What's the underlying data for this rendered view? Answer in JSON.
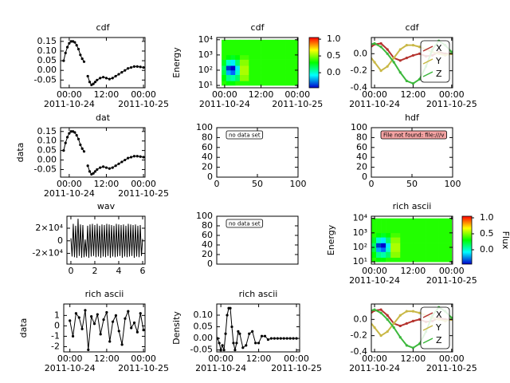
{
  "chart_data": [
    {
      "type": "line",
      "title": "cdf",
      "markers": true,
      "x": [
        -1.8,
        -1.2,
        -0.6,
        0,
        0.6,
        1.2,
        1.8,
        2.4,
        3,
        3.6,
        4.2,
        4.8,
        5.4,
        6,
        6.6,
        7.2,
        7.8,
        8.4,
        9,
        10,
        11,
        12,
        13,
        14,
        15,
        16,
        17,
        18,
        19,
        20,
        21,
        22,
        23,
        24
      ],
      "series": [
        {
          "color": "#000000",
          "values": [
            0.05,
            0.09,
            0.12,
            0.14,
            0.15,
            0.15,
            0.145,
            0.13,
            0.11,
            0.08,
            0.06,
            0.045,
            null,
            -0.03,
            -0.06,
            -0.075,
            -0.07,
            -0.06,
            -0.05,
            -0.04,
            -0.035,
            -0.04,
            -0.045,
            -0.04,
            -0.03,
            -0.02,
            -0.01,
            0,
            0.01,
            0.015,
            0.02,
            0.02,
            0.018,
            0.015
          ]
        }
      ],
      "xlim": [
        -2.8,
        24.5
      ],
      "ylim": [
        -0.09,
        0.17
      ],
      "xticks": [
        {
          "value": 0,
          "label": "00:00\n2011-10-24"
        },
        {
          "value": 12,
          "label": "12:00"
        },
        {
          "value": 24,
          "label": "00:00\n2011-10-25"
        }
      ],
      "yticks": [
        0.15,
        {
          "value": 0.1,
          "label": "0.10"
        },
        0.05,
        {
          "value": 0,
          "label": "0.00"
        },
        -0.05
      ]
    },
    {
      "type": "heatmap",
      "title": "cdf",
      "ylabel": "Energy",
      "ylog": true,
      "xbins": [
        -1,
        0.5,
        2,
        3.5,
        5,
        8,
        12,
        16,
        20,
        24
      ],
      "ybins": [
        10,
        20,
        50,
        100,
        200,
        500,
        1000,
        10000
      ],
      "z": [
        [
          0.35,
          0.3,
          0.3,
          0.35,
          0.35,
          0.35,
          0.35,
          0.35,
          0.35
        ],
        [
          0.3,
          0.1,
          0.05,
          0.15,
          0.5,
          0.35,
          0.35,
          0.35,
          0.35
        ],
        [
          0.2,
          -0.2,
          -0.3,
          0,
          0.55,
          0.35,
          0.35,
          0.35,
          0.35
        ],
        [
          0.15,
          -0.35,
          -0.45,
          -0.1,
          0.55,
          0.35,
          0.35,
          0.35,
          0.35
        ],
        [
          0.25,
          0,
          -0.1,
          0.15,
          0.5,
          0.35,
          0.35,
          0.35,
          0.35
        ],
        [
          0.35,
          0.3,
          0.25,
          0.3,
          0.4,
          0.35,
          0.35,
          0.35,
          0.35
        ],
        [
          0.35,
          0.35,
          0.35,
          0.35,
          0.35,
          0.35,
          0.35,
          0.35,
          0.35
        ]
      ],
      "clim": [
        -0.45,
        1.05
      ],
      "cticks": [
        {
          "value": 1,
          "label": "1.0"
        },
        {
          "value": 0.5,
          "label": "0.5"
        },
        {
          "value": 0,
          "label": "0.0"
        }
      ],
      "xlim": [
        -2.6,
        24.2
      ],
      "ylim": [
        7,
        14000
      ],
      "xticks": [
        {
          "value": 0,
          "label": "00:00\n2011-10-24"
        },
        {
          "value": 12,
          "label": "12:00"
        },
        {
          "value": 24,
          "label": "00:00\n2011-10-25"
        }
      ],
      "yticks": [
        {
          "value": 10,
          "label": "10¹"
        },
        {
          "value": 100,
          "label": "10²"
        },
        {
          "value": 1000,
          "label": "10³"
        },
        {
          "value": 10000,
          "label": "10⁴"
        }
      ]
    },
    {
      "type": "line",
      "title": "cdf",
      "markers": true,
      "legend": "right",
      "x": [
        -2,
        0,
        2,
        4,
        6,
        8,
        10,
        12,
        14,
        16,
        18,
        20,
        22,
        24
      ],
      "series": [
        {
          "name": "X",
          "color": "#b5332e",
          "values": [
            0.05,
            0.11,
            0.12,
            0.05,
            -0.05,
            -0.08,
            -0.05,
            -0.02,
            0,
            -0.03,
            -0.02,
            0.02,
            0,
            0
          ]
        },
        {
          "name": "Y",
          "color": "#c9b846",
          "values": [
            0,
            -0.1,
            -0.2,
            -0.15,
            -0.05,
            0.05,
            0.1,
            0.1,
            0.08,
            0.05,
            0.02,
            0,
            -0.02,
            0
          ]
        },
        {
          "name": "Z",
          "color": "#3cb83c",
          "values": [
            0.1,
            0.12,
            0.08,
            0,
            -0.1,
            -0.22,
            -0.32,
            -0.35,
            -0.3,
            -0.15,
            0.05,
            0.15,
            0.1,
            0.02
          ]
        }
      ],
      "xlim": [
        -1,
        24.3
      ],
      "ylim": [
        -0.4,
        0.19
      ],
      "xticks": [
        {
          "value": 0,
          "label": "00:00\n2011-10-24"
        },
        {
          "value": 12,
          "label": "12:00"
        },
        {
          "value": 24,
          "label": "00:00\n2011-10-25"
        }
      ],
      "yticks": [
        {
          "value": 0,
          "label": "0.0"
        },
        -0.2,
        -0.4
      ]
    },
    {
      "type": "line",
      "title": "dat",
      "ylabel": "data",
      "markers": true,
      "x": [
        -1.8,
        -1.2,
        -0.6,
        0,
        0.6,
        1.2,
        1.8,
        2.4,
        3,
        3.6,
        4.2,
        4.8,
        5.4,
        6,
        6.6,
        7.2,
        7.8,
        8.4,
        9,
        10,
        11,
        12,
        13,
        14,
        15,
        16,
        17,
        18,
        19,
        20,
        21,
        22,
        23,
        24
      ],
      "series": [
        {
          "color": "#000000",
          "values": [
            0.05,
            0.09,
            0.12,
            0.14,
            0.15,
            0.15,
            0.145,
            0.13,
            0.11,
            0.08,
            0.06,
            0.045,
            null,
            -0.03,
            -0.06,
            -0.075,
            -0.07,
            -0.06,
            -0.05,
            -0.04,
            -0.035,
            -0.04,
            -0.045,
            -0.04,
            -0.03,
            -0.02,
            -0.01,
            0,
            0.01,
            0.015,
            0.02,
            0.02,
            0.018,
            0.015
          ]
        }
      ],
      "xlim": [
        -2.8,
        24.5
      ],
      "ylim": [
        -0.09,
        0.17
      ],
      "xticks": [
        {
          "value": 0,
          "label": "00:00\n2011-10-24"
        },
        {
          "value": 12,
          "label": "12:00"
        },
        {
          "value": 24,
          "label": "00:00\n2011-10-25"
        }
      ],
      "yticks": [
        0.15,
        {
          "value": 0.1,
          "label": "0.10"
        },
        0.05,
        {
          "value": 0,
          "label": "0.00"
        },
        -0.05
      ]
    },
    {
      "type": "line",
      "series": [],
      "annotation": "no data set",
      "annotation_color": "#ffffff",
      "xlim": [
        0,
        100
      ],
      "ylim": [
        0,
        100
      ],
      "xticks": [
        0,
        50,
        100
      ],
      "yticks": [
        0,
        20,
        40,
        60,
        80,
        100
      ]
    },
    {
      "type": "line",
      "title": "hdf",
      "series": [],
      "annotation": "File not found: file:///v",
      "annotation_color": "#f4a3a3",
      "xlim": [
        0,
        100
      ],
      "ylim": [
        0,
        100
      ],
      "xticks": [
        0,
        50,
        100
      ],
      "yticks": [
        0,
        20,
        40,
        60,
        80,
        100
      ]
    },
    {
      "type": "line",
      "title": "wav",
      "markers": false,
      "x": [
        0,
        0.1,
        0.2,
        0.3,
        0.4,
        0.5,
        0.6,
        0.7,
        0.8,
        0.9,
        1,
        1.1,
        1.2,
        1.3,
        1.4,
        1.5,
        1.6,
        1.7,
        1.8,
        1.9,
        2,
        2.1,
        2.2,
        2.3,
        2.4,
        2.5,
        2.6,
        2.7,
        2.8,
        2.9,
        3,
        3.1,
        3.2,
        3.3,
        3.4,
        3.5,
        3.6,
        3.7,
        3.8,
        3.9,
        4,
        4.1,
        4.2,
        4.3,
        4.4,
        4.5,
        4.6,
        4.7,
        4.8,
        4.9,
        5,
        5.1,
        5.2,
        5.3,
        5.4,
        5.5,
        5.6,
        5.7,
        5.8,
        5.9,
        6
      ],
      "series": [
        {
          "color": "#000000",
          "values": [
            4000,
            -25000,
            27000,
            -26000,
            24000,
            -27000,
            35000,
            -24000,
            26000,
            -27000,
            25000,
            -26000,
            2000,
            -25000,
            24000,
            -27000,
            26000,
            -25000,
            27000,
            -24000,
            25000,
            -26000,
            27000,
            -25000,
            24000,
            -27000,
            26000,
            -25000,
            25000,
            -26000,
            27000,
            -24000,
            26000,
            -27000,
            25000,
            -25000,
            24000,
            -26000,
            27000,
            -25000,
            26000,
            -24000,
            25000,
            -27000,
            26000,
            -25000,
            24000,
            -26000,
            27000,
            -25000,
            26000,
            -24000,
            25000,
            -27000,
            26000,
            -25000,
            24000,
            -26000,
            25000,
            -24000,
            3000
          ]
        }
      ],
      "xlim": [
        -0.33,
        6.2
      ],
      "ylim": [
        -37000,
        39000
      ],
      "xticks": [
        0,
        2,
        4,
        6
      ],
      "yticks": [
        {
          "value": 20000,
          "label": "2×10⁴"
        },
        0,
        {
          "value": -20000,
          "label": "-2×10⁴"
        }
      ]
    },
    {
      "type": "line",
      "series": [],
      "annotation": "no data set",
      "annotation_color": "#ffffff",
      "xlim": [
        0,
        100
      ],
      "ylim": [
        0,
        100
      ],
      "yticks": [
        0,
        20,
        40,
        60,
        80,
        100
      ]
    },
    {
      "type": "heatmap",
      "title": "rich ascii",
      "ylabel": "Energy",
      "zlabel": "Flux",
      "ylog": true,
      "xbins": [
        -1,
        0.5,
        2,
        3.5,
        5,
        8,
        12,
        16,
        20,
        24
      ],
      "ybins": [
        10,
        20,
        50,
        100,
        200,
        500,
        1000,
        10000
      ],
      "z": [
        [
          0.35,
          0.3,
          0.3,
          0.35,
          0.35,
          0.35,
          0.35,
          0.35,
          0.35
        ],
        [
          0.3,
          0.1,
          0.05,
          0.15,
          0.5,
          0.35,
          0.35,
          0.35,
          0.35
        ],
        [
          0.2,
          -0.2,
          -0.3,
          0,
          0.55,
          0.35,
          0.35,
          0.35,
          0.35
        ],
        [
          0.15,
          -0.35,
          -0.45,
          -0.1,
          0.55,
          0.35,
          0.35,
          0.35,
          0.35
        ],
        [
          0.25,
          0,
          -0.1,
          0.15,
          0.5,
          0.35,
          0.35,
          0.35,
          0.35
        ],
        [
          0.35,
          0.3,
          0.25,
          0.3,
          0.4,
          0.35,
          0.35,
          0.35,
          0.35
        ],
        [
          0.35,
          0.35,
          0.35,
          0.35,
          0.35,
          0.35,
          0.35,
          0.35,
          0.35
        ]
      ],
      "clim": [
        -0.45,
        1.05
      ],
      "cticks": [
        {
          "value": 1,
          "label": "1.0"
        },
        {
          "value": 0.5,
          "label": "0.5"
        },
        {
          "value": 0,
          "label": "0.0"
        }
      ],
      "xlim": [
        -1,
        24.3
      ],
      "ylim": [
        7,
        14000
      ],
      "xticks": [
        {
          "value": 0,
          "label": "00:00\n2011-10-24"
        },
        {
          "value": 12,
          "label": "12:00"
        },
        {
          "value": 24,
          "label": "00:00\n2011-10-25"
        }
      ],
      "yticks": [
        {
          "value": 10,
          "label": "10¹"
        },
        {
          "value": 100,
          "label": "10²"
        },
        {
          "value": 1000,
          "label": "10³"
        },
        {
          "value": 10000,
          "label": "10⁴"
        }
      ]
    },
    {
      "type": "line",
      "title": "rich ascii",
      "ylabel": "data",
      "markers": true,
      "x": [
        0,
        1,
        2,
        3,
        4,
        5,
        6,
        7,
        8,
        9,
        10,
        11,
        12,
        13,
        14,
        15,
        16,
        17,
        18,
        19,
        20,
        21,
        22,
        23,
        24
      ],
      "series": [
        {
          "color": "#000000",
          "values": [
            0.5,
            -1,
            1.2,
            0.8,
            -0.3,
            1.5,
            -2.3,
            0.9,
            0.2,
            1.1,
            -0.8,
            0.6,
            1.3,
            -1.5,
            0.4,
            1,
            -0.5,
            -1.8,
            0.7,
            1.4,
            -0.2,
            0.3,
            -0.6,
            1.2,
            -0.4
          ]
        }
      ],
      "xlim": [
        -2,
        24.5
      ],
      "ylim": [
        -2.5,
        2.1
      ],
      "xticks": [
        {
          "value": 0,
          "label": "00:00\n2011-10-24"
        },
        {
          "value": 12,
          "label": "12:00"
        },
        {
          "value": 24,
          "label": "00:00\n2011-10-25"
        }
      ],
      "yticks": [
        1,
        0,
        -1,
        -2
      ]
    },
    {
      "type": "line",
      "title": "rich ascii",
      "ylabel": "Density",
      "markers": true,
      "x": [
        -1,
        -0.5,
        0,
        0.5,
        1,
        1.5,
        2,
        2.5,
        3,
        3.5,
        4,
        4.5,
        5,
        5.5,
        6,
        7,
        8,
        9,
        10,
        11,
        12,
        13,
        14,
        15,
        16,
        17,
        18,
        19,
        20,
        21,
        22,
        23,
        24
      ],
      "series": [
        {
          "color": "#000000",
          "values": [
            0,
            -0.02,
            -0.05,
            -0.03,
            -0.05,
            0.02,
            0.1,
            0.13,
            0.13,
            0.05,
            -0.02,
            -0.05,
            -0.02,
            0.03,
            0.02,
            -0.04,
            -0.03,
            0.02,
            0.03,
            -0.02,
            -0.02,
            0.01,
            0.01,
            -0.005,
            0,
            0,
            0,
            0,
            0,
            0,
            0,
            0,
            0
          ]
        }
      ],
      "xlim": [
        -1.3,
        25
      ],
      "ylim": [
        -0.058,
        0.148
      ],
      "xticks": [
        {
          "value": 0,
          "label": "00:00\n2011-10-24"
        },
        {
          "value": 12,
          "label": "12:00"
        },
        {
          "value": 24,
          "label": "00:00\n2011-10-25"
        }
      ],
      "yticks": [
        {
          "value": 0.1,
          "label": "0.10"
        },
        0.05,
        {
          "value": 0,
          "label": "0.00"
        },
        -0.05
      ]
    },
    {
      "type": "line",
      "markers": true,
      "legend": "right",
      "x": [
        -2,
        0,
        2,
        4,
        6,
        8,
        10,
        12,
        14,
        16,
        18,
        20,
        22,
        24
      ],
      "series": [
        {
          "name": "X",
          "color": "#b5332e",
          "values": [
            0.05,
            0.11,
            0.12,
            0.05,
            -0.05,
            -0.08,
            -0.05,
            -0.02,
            0,
            -0.03,
            -0.02,
            0.02,
            0,
            0
          ]
        },
        {
          "name": "Y",
          "color": "#c9b846",
          "values": [
            0,
            -0.1,
            -0.2,
            -0.15,
            -0.05,
            0.05,
            0.1,
            0.1,
            0.08,
            0.05,
            0.02,
            0,
            -0.02,
            0
          ]
        },
        {
          "name": "Z",
          "color": "#3cb83c",
          "values": [
            0.1,
            0.12,
            0.08,
            0,
            -0.1,
            -0.22,
            -0.32,
            -0.35,
            -0.3,
            -0.15,
            0.05,
            0.15,
            0.1,
            0.02
          ]
        }
      ],
      "xlim": [
        -1,
        24.3
      ],
      "ylim": [
        -0.4,
        0.19
      ],
      "xticks": [
        {
          "value": 0,
          "label": "00:00\n2011-10-24"
        },
        {
          "value": 12,
          "label": "12:00"
        },
        {
          "value": 24,
          "label": "00:00\n2011-10-25"
        }
      ],
      "yticks": [
        {
          "value": 0,
          "label": "0.0"
        },
        -0.2,
        -0.4
      ]
    }
  ]
}
